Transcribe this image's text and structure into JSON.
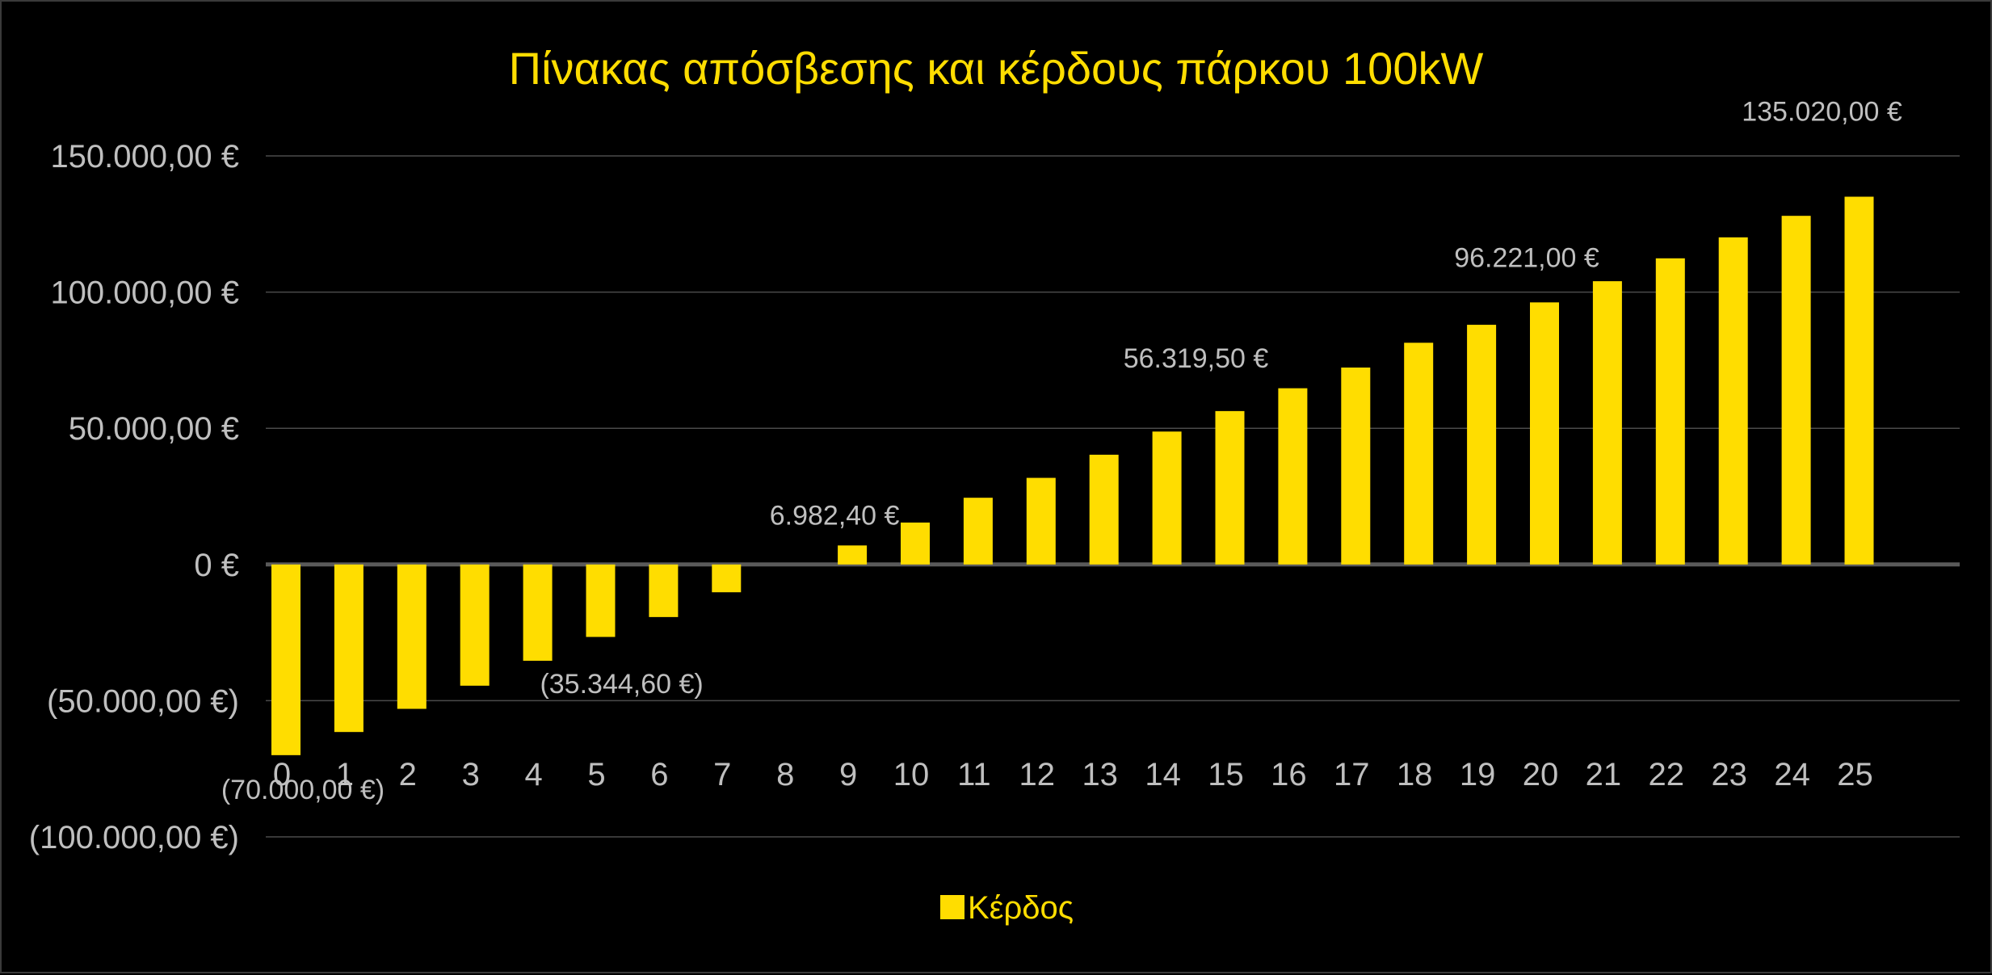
{
  "chart_data": {
    "type": "bar",
    "title": "Πίνακας απόσβεσης και κέρδους πάρκου 100kW",
    "xlabel": "",
    "ylabel": "",
    "categories": [
      "0",
      "1",
      "2",
      "3",
      "4",
      "5",
      "6",
      "7",
      "8",
      "9",
      "10",
      "11",
      "12",
      "13",
      "14",
      "15",
      "16",
      "17",
      "18",
      "19",
      "20",
      "21",
      "22",
      "23",
      "24",
      "25"
    ],
    "series": [
      {
        "name": "Κέρδος",
        "values": [
          -70000,
          -61500,
          -53000,
          -44500,
          -35344.6,
          -26600,
          -19300,
          -10200,
          0,
          6982.4,
          15400,
          24500,
          31800,
          40300,
          48800,
          56319.5,
          64700,
          72300,
          81400,
          88000,
          96221,
          104000,
          112400,
          120100,
          128000,
          135020
        ]
      }
    ],
    "ylim": [
      -100000,
      150000
    ],
    "y_ticks": [
      150000,
      100000,
      50000,
      0,
      -50000,
      -100000
    ],
    "y_tick_labels": [
      "150.000,00 €",
      "100.000,00 €",
      "50.000,00 €",
      "0 €",
      "(50.000,00 €)",
      "(100.000,00 €)"
    ],
    "data_labels": [
      {
        "category": "0",
        "text": "(70.000,00 €)"
      },
      {
        "category": "4",
        "text": "(35.344,60 €)"
      },
      {
        "category": "9",
        "text": "6.982,40 €"
      },
      {
        "category": "15",
        "text": "56.319,50 €"
      },
      {
        "category": "20",
        "text": "96.221,00 €"
      },
      {
        "category": "25",
        "text": "135.020,00 €"
      }
    ],
    "grid": true,
    "legend": "bottom",
    "colors": {
      "background": "#000000",
      "bar": "#FFDD00",
      "title": "#FFDD00",
      "legend_text": "#FFDD00",
      "tick_text": "#BFBFBF",
      "gridline": "#4a4a4a",
      "zero_line": "#5a5a5a"
    }
  }
}
